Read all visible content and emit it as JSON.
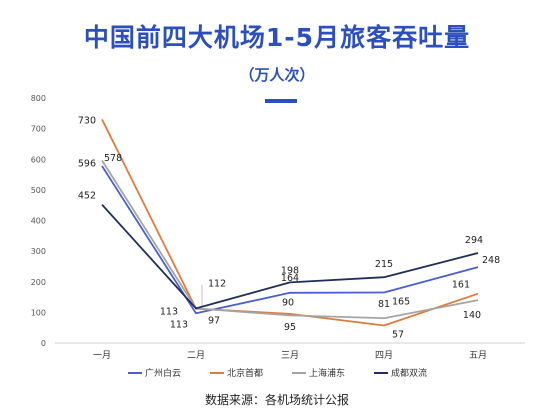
{
  "header": {
    "title": "中国前四大机场1-5月旅客吞吐量",
    "subtitle": "（万人次）"
  },
  "source": "数据来源：各机场统计公报",
  "chart_data": {
    "type": "line",
    "categories": [
      "一月",
      "二月",
      "三月",
      "四月",
      "五月"
    ],
    "ylim": [
      0,
      800
    ],
    "yticks": [
      0,
      100,
      200,
      300,
      400,
      500,
      600,
      700,
      800
    ],
    "grid": false,
    "legend_position": "bottom",
    "series": [
      {
        "name": "广州白云",
        "color": "#4a5fd1",
        "values": [
          578,
          97,
          164,
          165,
          248
        ]
      },
      {
        "name": "北京首都",
        "color": "#e07b39",
        "values": [
          730,
          112,
          95,
          57,
          161
        ]
      },
      {
        "name": "上海浦东",
        "color": "#a5a5a5",
        "values": [
          596,
          113,
          90,
          81,
          140
        ]
      },
      {
        "name": "成都双流",
        "color": "#1f2f5c",
        "values": [
          452,
          113,
          198,
          215,
          294
        ]
      }
    ]
  }
}
